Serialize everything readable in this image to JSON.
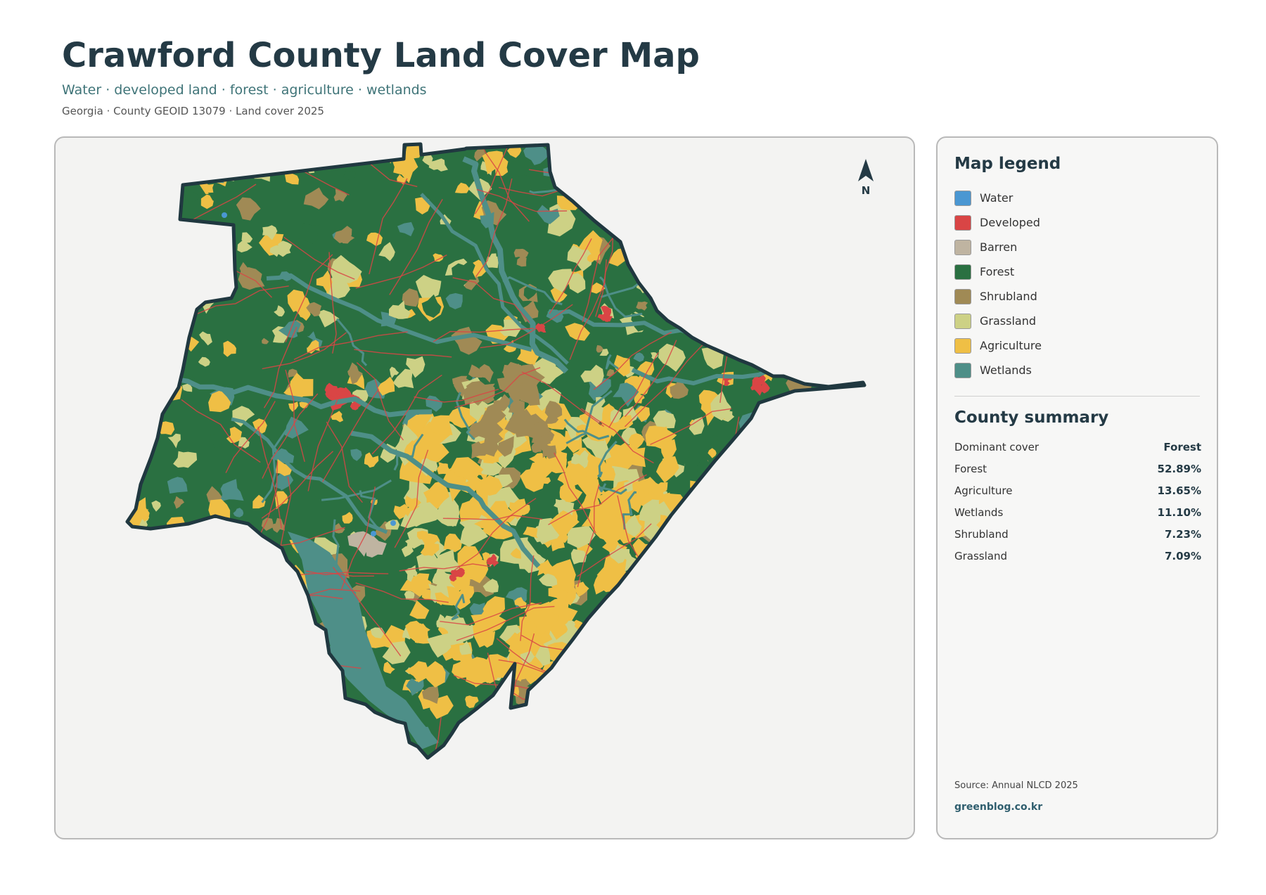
{
  "header": {
    "title": "Crawford County Land Cover Map",
    "subtitle": "Water · developed land · forest · agriculture · wetlands",
    "meta": "Georgia · County GEOID 13079 · Land cover 2025"
  },
  "map": {
    "north_label": "N",
    "colors": {
      "water": "#4a97d2",
      "developed": "#d94545",
      "barren": "#bfb4a1",
      "forest": "#2a7041",
      "shrubland": "#a08a55",
      "grassland": "#cdd185",
      "agriculture": "#efbf45",
      "wetlands": "#4e8f88",
      "outline": "#203840"
    }
  },
  "legend": {
    "title": "Map legend",
    "items": [
      {
        "label": "Water",
        "color": "#4a97d2"
      },
      {
        "label": "Developed",
        "color": "#d94545"
      },
      {
        "label": "Barren",
        "color": "#bfb4a1"
      },
      {
        "label": "Forest",
        "color": "#2a7041"
      },
      {
        "label": "Shrubland",
        "color": "#a08a55"
      },
      {
        "label": "Grassland",
        "color": "#cdd185"
      },
      {
        "label": "Agriculture",
        "color": "#efbf45"
      },
      {
        "label": "Wetlands",
        "color": "#4e8f88"
      }
    ]
  },
  "summary": {
    "title": "County summary",
    "rows": [
      {
        "key": "Dominant cover",
        "value": "Forest"
      },
      {
        "key": "Forest",
        "value": "52.89%"
      },
      {
        "key": "Agriculture",
        "value": "13.65%"
      },
      {
        "key": "Wetlands",
        "value": "11.10%"
      },
      {
        "key": "Shrubland",
        "value": "7.23%"
      },
      {
        "key": "Grassland",
        "value": "7.09%"
      }
    ]
  },
  "footer": {
    "source": "Source: Annual NLCD 2025",
    "site": "greenblog.co.kr"
  }
}
